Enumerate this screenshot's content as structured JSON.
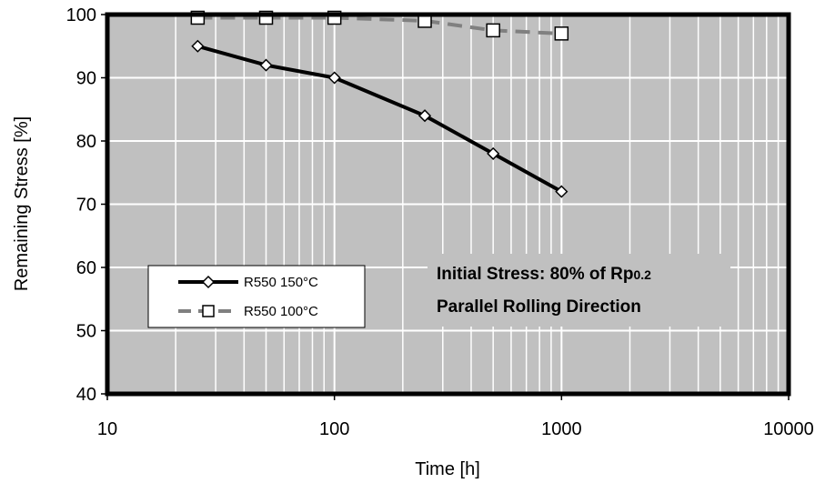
{
  "chart_data": {
    "type": "line",
    "title": "",
    "xlabel": "Time [h]",
    "ylabel": "Remaining Stress [%]",
    "xscale": "log",
    "xlim": [
      10,
      10000
    ],
    "ylim": [
      40,
      100
    ],
    "xticks": [
      {
        "value": 10,
        "label": "10"
      },
      {
        "value": 100,
        "label": "100"
      },
      {
        "value": 1000,
        "label": "1000"
      },
      {
        "value": 10000,
        "label": "10000"
      }
    ],
    "yticks": [
      {
        "value": 40,
        "label": "40"
      },
      {
        "value": 50,
        "label": "50"
      },
      {
        "value": 60,
        "label": "60"
      },
      {
        "value": 70,
        "label": "70"
      },
      {
        "value": 80,
        "label": "80"
      },
      {
        "value": 90,
        "label": "90"
      },
      {
        "value": 100,
        "label": "100"
      }
    ],
    "grid": true,
    "plot_background": "#c0c0c0",
    "grid_color": "#ffffff",
    "series": [
      {
        "name": "R550 150°C",
        "color": "#000000",
        "line_style": "solid",
        "marker": "diamond",
        "x": [
          25,
          50,
          100,
          250,
          500,
          1000
        ],
        "y": [
          95,
          92,
          90,
          84,
          78,
          72
        ]
      },
      {
        "name": "R550 100°C",
        "color": "#808080",
        "line_style": "dashed",
        "marker": "square",
        "x": [
          25,
          50,
          100,
          250,
          500,
          1000
        ],
        "y": [
          99.5,
          99.5,
          99.5,
          99,
          97.5,
          97
        ]
      }
    ],
    "legend": {
      "position": "lower-left"
    },
    "annotation": {
      "line1_main": "Initial Stress: 80% of Rp",
      "line1_sub": "0.2",
      "line2": "Parallel Rolling Direction"
    }
  }
}
